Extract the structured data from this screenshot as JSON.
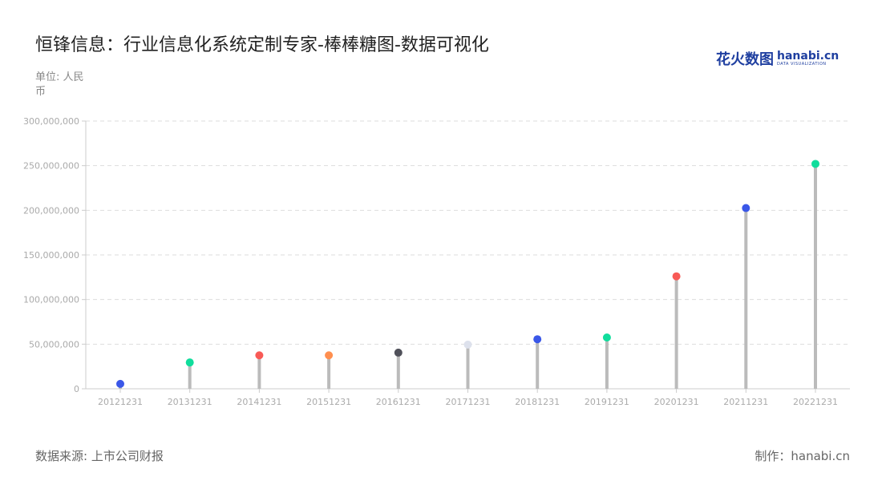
{
  "header": {
    "title": "恒锋信息：行业信息化系统定制专家-棒棒糖图-数据可视化",
    "unit": "单位: 人民币"
  },
  "logo": {
    "cn": "花火数图",
    "en": "hanabi.cn",
    "sub": "DATA VISUALIZATION"
  },
  "footer": {
    "source": "数据来源: 上市公司财报",
    "maker": "制作：hanabi.cn"
  },
  "chart_data": {
    "type": "lollipop",
    "categories": [
      "20121231",
      "20131231",
      "20141231",
      "20151231",
      "20161231",
      "20171231",
      "20181231",
      "20191231",
      "20201231",
      "20211231",
      "20221231"
    ],
    "values": [
      5500000,
      29500000,
      37500000,
      37500000,
      40500000,
      49500000,
      55500000,
      57500000,
      126000000,
      202500000,
      252000000
    ],
    "colors": [
      "#3a57e8",
      "#10dd9c",
      "#f85a56",
      "#ff8f4f",
      "#50515a",
      "#dde1ec",
      "#3a57e8",
      "#10dd9c",
      "#f85a56",
      "#3a57e8",
      "#10dd9c"
    ],
    "stem_color": "#bbbbbb",
    "ylim": [
      0,
      300000000
    ],
    "yticks": [
      "0",
      "50,000,000",
      "100,000,000",
      "150,000,000",
      "200,000,000",
      "250,000,000",
      "300,000,000"
    ],
    "grid": true
  }
}
